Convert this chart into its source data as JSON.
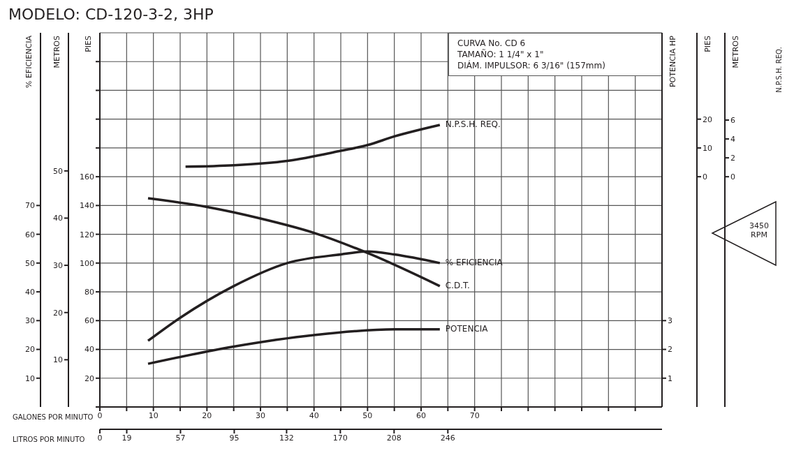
{
  "chart_data": [
    {
      "type": "line",
      "title": "MODELO: CD-120-3-2, 3HP",
      "xlabel": "GALONES POR MINUTO",
      "x2label": "LITROS POR MINUTO",
      "ylabel": "PIES",
      "y2label": "% EFICIENCIA",
      "y3label": "METROS",
      "xlim": [
        0,
        105
      ],
      "xticks": [
        0,
        {
          "value": 5,
          "label": null
        },
        10,
        {
          "value": 15,
          "label": null
        },
        20,
        {
          "value": 25,
          "label": null
        },
        30,
        {
          "value": 35,
          "label": null
        },
        40,
        {
          "value": 45,
          "label": null
        },
        50,
        {
          "value": 55,
          "label": null
        },
        60,
        {
          "value": 65,
          "label": null
        },
        70,
        {
          "value": 75,
          "label": null
        },
        {
          "value": 80,
          "label": null
        },
        {
          "value": 85,
          "label": null
        },
        {
          "value": 90,
          "label": null
        },
        {
          "value": 95,
          "label": null
        },
        {
          "value": 100,
          "label": null
        }
      ],
      "x2lim": [
        0,
        397.4
      ],
      "x2ticks": [
        0,
        19,
        57,
        95,
        132,
        170,
        208,
        246
      ],
      "ylim": [
        0,
        260
      ],
      "yticks": [
        {
          "value": 0,
          "label": null
        },
        20,
        40,
        60,
        80,
        100,
        120,
        140,
        160,
        {
          "value": 180,
          "label": null
        },
        {
          "value": 200,
          "label": null
        },
        {
          "value": 220,
          "label": null
        },
        {
          "value": 240,
          "label": null
        }
      ],
      "y2lim": [
        0,
        130
      ],
      "y2ticks": [
        10,
        20,
        30,
        40,
        50,
        60,
        70
      ],
      "y3lim": [
        0,
        79.25
      ],
      "y3ticks": [
        10,
        20,
        30,
        40,
        50
      ],
      "grid": true,
      "series": [
        {
          "name": "C.D.T.",
          "color": "#231f20",
          "x": [
            9,
            20,
            30,
            40,
            50,
            63.5
          ],
          "values": [
            145,
            139,
            131,
            121,
            107,
            84
          ]
        },
        {
          "name": "% EFICIENCIA",
          "color": "#231f20",
          "axis": "y2",
          "x": [
            9,
            15,
            25,
            35,
            45,
            50,
            55,
            63.5
          ],
          "values": [
            23,
            31,
            42,
            50,
            53,
            54,
            53,
            50
          ]
        }
      ],
      "annotations": [
        "CURVA No. CD 6",
        "TAMAÑO: 1 1/4\" x 1\"",
        "DIÁM. IMPULSOR: 6 3/16\" (157mm)",
        "3450 RPM"
      ]
    },
    {
      "type": "line",
      "tick_labels": "y",
      "xlim": [
        0,
        105
      ],
      "ylabel": "PIES",
      "y2label": "METROS",
      "y3label": "POTENCIA HP",
      "ylim": [
        -80,
        50
      ],
      "yticks": [
        0,
        10,
        20
      ],
      "y2lim": [
        -24.38,
        15.24
      ],
      "y2ticks": [
        0,
        2,
        4,
        6
      ],
      "y3lim": [
        0,
        13
      ],
      "y3ticks": [
        1,
        2,
        3
      ],
      "series": [
        {
          "name": "N.P.S.H. REQ.",
          "color": "#231f20",
          "x": [
            16,
            25,
            35,
            45,
            50,
            55,
            63.5
          ],
          "values": [
            3.5,
            4,
            5.5,
            9,
            11,
            14,
            18
          ]
        },
        {
          "name": "POTENCIA",
          "color": "#231f20",
          "axis": "y3",
          "x": [
            9,
            25,
            40,
            55,
            63.5
          ],
          "values": [
            1.5,
            2.1,
            2.5,
            2.7,
            2.7
          ]
        }
      ],
      "annotations": [
        "N.P.S.H. REQ."
      ]
    }
  ]
}
